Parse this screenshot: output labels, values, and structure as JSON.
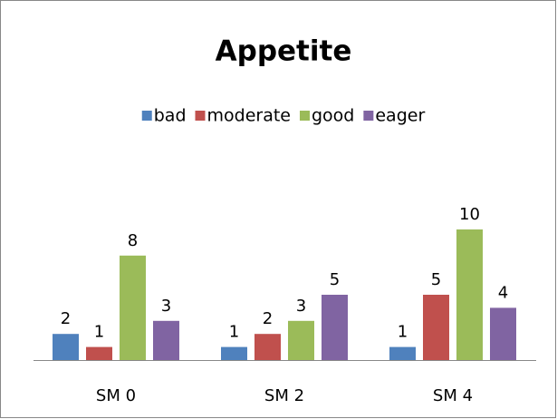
{
  "chart_data": {
    "type": "bar",
    "title": "Appetite",
    "categories": [
      "SM 0",
      "SM 2",
      "SM 4"
    ],
    "series": [
      {
        "name": "bad",
        "color": "#4f81bd",
        "values": [
          2,
          1,
          1
        ]
      },
      {
        "name": "moderate",
        "color": "#c0504d",
        "values": [
          1,
          2,
          5
        ]
      },
      {
        "name": "good",
        "color": "#9bbb59",
        "values": [
          8,
          3,
          10
        ]
      },
      {
        "name": "eager",
        "color": "#8064a2",
        "values": [
          3,
          5,
          4
        ]
      }
    ],
    "ylim": [
      0,
      12
    ],
    "grid": false,
    "legend": "top"
  }
}
